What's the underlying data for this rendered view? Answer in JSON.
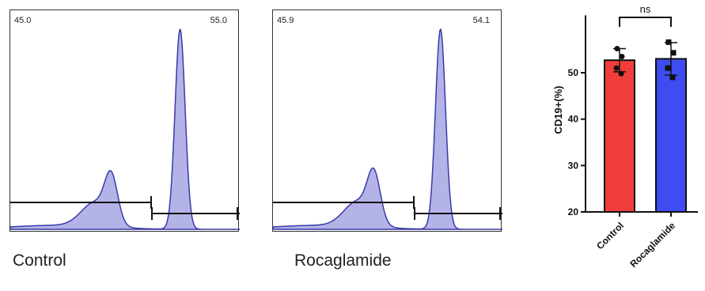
{
  "chart_data": [
    {
      "type": "area",
      "panel": "Control",
      "caption": "Control",
      "gate_labels": [
        "45.0",
        "55.0"
      ],
      "gate_values": [
        45.0,
        55.0
      ],
      "peaks": [
        {
          "center": 0.44,
          "height": 0.22
        },
        {
          "center": 0.74,
          "height": 1.0
        }
      ],
      "color": "#9a9ae0",
      "stroke": "#3a3aa8"
    },
    {
      "type": "area",
      "panel": "Rocaglamide",
      "caption": "Rocaglamide",
      "gate_labels": [
        "45.9",
        "54.1"
      ],
      "gate_values": [
        45.9,
        54.1
      ],
      "peaks": [
        {
          "center": 0.44,
          "height": 0.23
        },
        {
          "center": 0.73,
          "height": 1.0
        }
      ],
      "color": "#9a9ae0",
      "stroke": "#3a3aa8"
    },
    {
      "type": "bar",
      "categories": [
        "Control",
        "Rocaglamide"
      ],
      "values": [
        52.7,
        53.0
      ],
      "errors": [
        2.5,
        3.5
      ],
      "points": [
        [
          55.2,
          53.5,
          51.0,
          49.8
        ],
        [
          56.6,
          54.3,
          51.0,
          49.0
        ]
      ],
      "colors": [
        "#f23d3d",
        "#3d4df2"
      ],
      "ylabel": "CD19+(%)",
      "ylim": [
        20,
        60
      ],
      "yticks": [
        20,
        30,
        40,
        50
      ],
      "significance": "ns"
    }
  ]
}
